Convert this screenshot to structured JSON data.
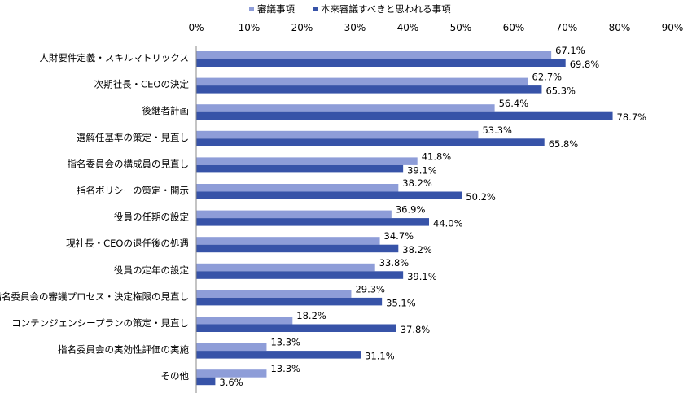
{
  "chart_data": {
    "type": "bar",
    "orientation": "horizontal",
    "xlim": [
      0,
      90
    ],
    "x_tick_labels": [
      "0%",
      "10%",
      "20%",
      "30%",
      "40%",
      "50%",
      "60%",
      "70%",
      "80%",
      "90%"
    ],
    "legend_position": "top",
    "grid": false,
    "categories": [
      "人財要件定義・スキルマトリックス",
      "次期社長・CEOの決定",
      "後継者計画",
      "選解任基準の策定・見直し",
      "指名委員会の構成員の見直し",
      "指名ポリシーの策定・開示",
      "役員の任期の設定",
      "現社長・CEOの退任後の処遇",
      "役員の定年の設定",
      "指名委員会の審議プロセス・決定権限の見直し",
      "コンテンジェンシープランの策定・見直し",
      "指名委員会の実効性評価の実施",
      "その他"
    ],
    "series": [
      {
        "name": "審議事項",
        "color": "#8e9dd8",
        "values": [
          67.1,
          62.7,
          56.4,
          53.3,
          41.8,
          38.2,
          36.9,
          34.7,
          33.8,
          29.3,
          18.2,
          13.3,
          13.3
        ],
        "labels": [
          "67.1%",
          "62.7%",
          "56.4%",
          "53.3%",
          "41.8%",
          "38.2%",
          "36.9%",
          "34.7%",
          "33.8%",
          "29.3%",
          "18.2%",
          "13.3%",
          "13.3%"
        ]
      },
      {
        "name": "本来審議すべきと思われる事項",
        "color": "#3753a8",
        "values": [
          69.8,
          65.3,
          78.7,
          65.8,
          39.1,
          50.2,
          44.0,
          38.2,
          39.1,
          35.1,
          37.8,
          31.1,
          3.6
        ],
        "labels": [
          "69.8%",
          "65.3%",
          "78.7%",
          "65.8%",
          "39.1%",
          "50.2%",
          "44.0%",
          "38.2%",
          "39.1%",
          "35.1%",
          "37.8%",
          "31.1%",
          "3.6%"
        ]
      }
    ]
  }
}
